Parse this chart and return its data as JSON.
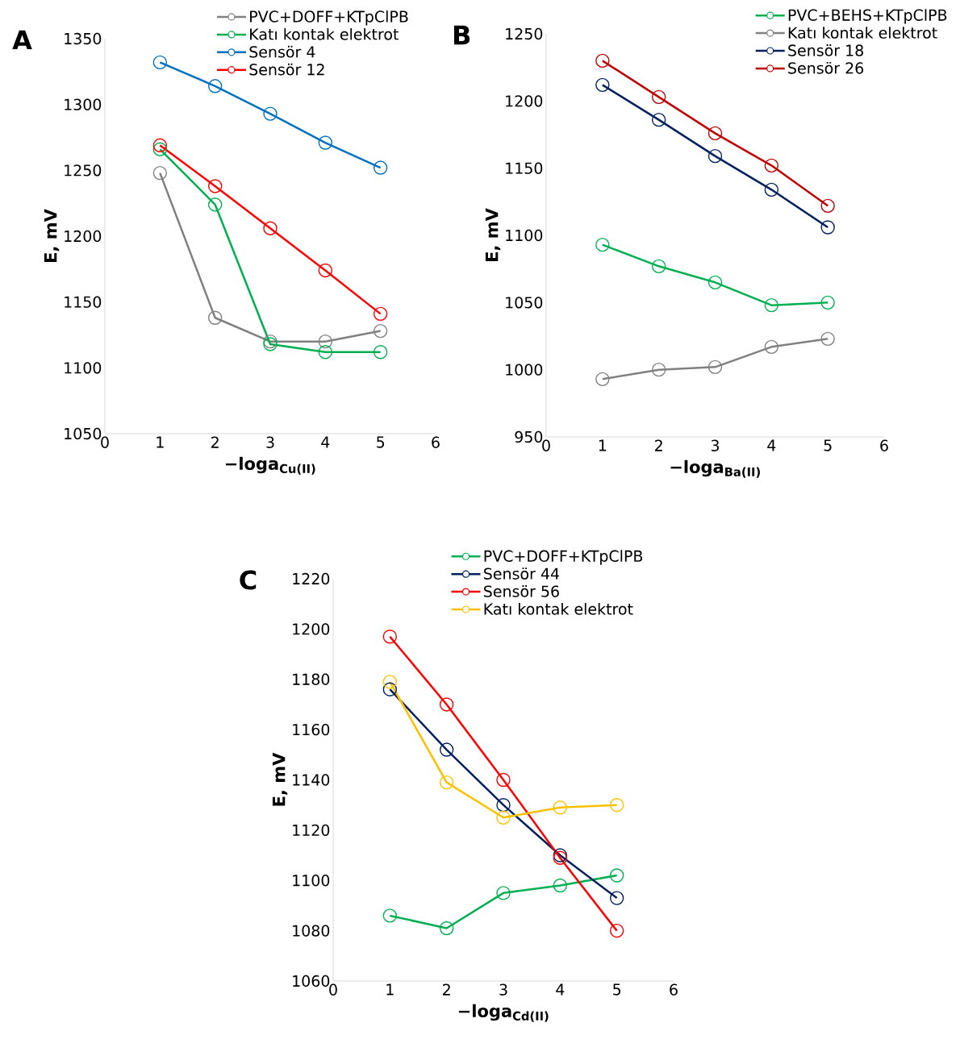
{
  "chart_data": [
    {
      "type": "line",
      "title": "A",
      "xlabel": "−loga$_{Cu(II)}$",
      "ylabel": "E, mV",
      "x": [
        1,
        2,
        3,
        4,
        5
      ],
      "xlim": [
        0,
        6
      ],
      "ylim": [
        1050,
        1350
      ],
      "xticks": [
        0,
        1,
        2,
        3,
        4,
        5,
        6
      ],
      "yticks": [
        1050,
        1100,
        1150,
        1200,
        1250,
        1300,
        1350
      ],
      "legend": "top",
      "marker": "circle",
      "series": [
        {
          "name": "PVC+DOFF+KTpClPB",
          "color": "#808080",
          "values": [
            1248,
            1138,
            1120,
            1120,
            1128
          ]
        },
        {
          "name": "Katı kontak elektrot",
          "color": "#00b050",
          "values": [
            1266,
            1224,
            1118,
            1112,
            1112
          ]
        },
        {
          "name": "Sensör 4",
          "color": "#0070c0",
          "values": [
            1332,
            1314,
            1293,
            1271,
            1252
          ]
        },
        {
          "name": "Sensör 12",
          "color": "#ff0000",
          "values": [
            1269,
            1238,
            1206,
            1174,
            1141
          ]
        }
      ]
    },
    {
      "type": "line",
      "title": "B",
      "xlabel": "−loga$_{Ba(II)}$",
      "ylabel": "E, mV",
      "x": [
        1,
        2,
        3,
        4,
        5
      ],
      "xlim": [
        0,
        6
      ],
      "ylim": [
        950,
        1250
      ],
      "xticks": [
        0,
        1,
        2,
        3,
        4,
        5,
        6
      ],
      "yticks": [
        950,
        1000,
        1050,
        1100,
        1150,
        1200,
        1250
      ],
      "legend": "top right",
      "marker": "circle",
      "series": [
        {
          "name": "PVC+BEHS+KTpClPB",
          "color": "#00b050",
          "values": [
            1093,
            1077,
            1065,
            1048,
            1050
          ]
        },
        {
          "name": "Katı kontak elektrot",
          "color": "#808080",
          "values": [
            993,
            1000,
            1002,
            1017,
            1023
          ]
        },
        {
          "name": "Sensör 18",
          "color": "#002060",
          "values": [
            1212,
            1186,
            1159,
            1134,
            1106
          ]
        },
        {
          "name": "Sensör 26",
          "color": "#c00000",
          "values": [
            1230,
            1203,
            1176,
            1152,
            1122
          ]
        }
      ]
    },
    {
      "type": "line",
      "title": "C",
      "xlabel": "−loga$_{Cd(II)}$",
      "ylabel": "E, mV",
      "x": [
        1,
        2,
        3,
        4,
        5
      ],
      "xlim": [
        0,
        6
      ],
      "ylim": [
        1060,
        1220
      ],
      "xticks": [
        0,
        1,
        2,
        3,
        4,
        5,
        6
      ],
      "yticks": [
        1060,
        1080,
        1100,
        1120,
        1140,
        1160,
        1180,
        1200,
        1220
      ],
      "legend": "top",
      "marker": "circle",
      "series": [
        {
          "name": "PVC+DOFF+KTpClPB",
          "color": "#00b050",
          "values": [
            1086,
            1081,
            1095,
            1098,
            1102
          ]
        },
        {
          "name": "Sensör 44",
          "color": "#002060",
          "values": [
            1176,
            1152,
            1130,
            1110,
            1093
          ]
        },
        {
          "name": "Sensör 56",
          "color": "#ff0000",
          "values": [
            1197,
            1170,
            1140,
            1109,
            1080
          ]
        },
        {
          "name": "Katı kontak elektrot",
          "color": "#ffc000",
          "values": [
            1179,
            1139,
            1125,
            1129,
            1130
          ]
        }
      ]
    }
  ]
}
